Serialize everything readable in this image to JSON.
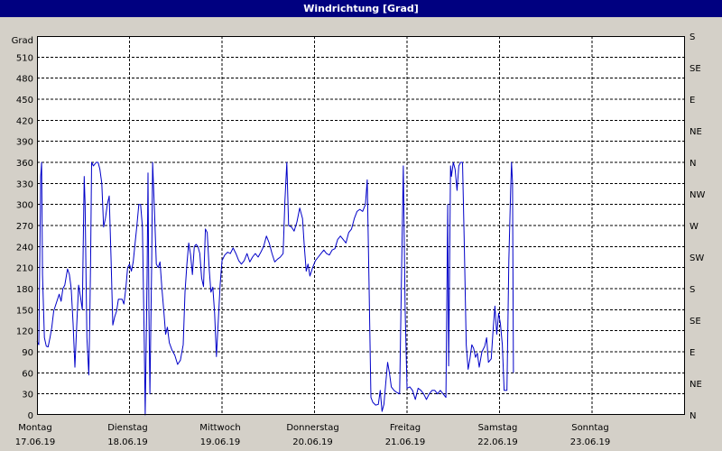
{
  "window": {
    "title": "Windrichtung [Grad]"
  },
  "chart_data": {
    "type": "line",
    "title": "Windrichtung [Grad]",
    "ylabel": "Grad",
    "ylim": [
      0,
      540
    ],
    "y_ticks": [
      0,
      30,
      60,
      90,
      120,
      150,
      180,
      210,
      240,
      270,
      300,
      330,
      360,
      390,
      420,
      450,
      480,
      510
    ],
    "right_axis_labels": [
      {
        "value": 0,
        "label": "N"
      },
      {
        "value": 45,
        "label": "NE"
      },
      {
        "value": 90,
        "label": "E"
      },
      {
        "value": 135,
        "label": "SE"
      },
      {
        "value": 180,
        "label": "S"
      },
      {
        "value": 225,
        "label": "SW"
      },
      {
        "value": 270,
        "label": "W"
      },
      {
        "value": 315,
        "label": "NW"
      },
      {
        "value": 360,
        "label": "N"
      },
      {
        "value": 405,
        "label": "NE"
      },
      {
        "value": 450,
        "label": "E"
      },
      {
        "value": 495,
        "label": "SE"
      },
      {
        "value": 540,
        "label": "S"
      }
    ],
    "x_range_days": [
      0,
      7
    ],
    "x_ticks": [
      {
        "day": 0,
        "weekday": "Montag",
        "date": "17.06.19"
      },
      {
        "day": 1,
        "weekday": "Dienstag",
        "date": "18.06.19"
      },
      {
        "day": 2,
        "weekday": "Mittwoch",
        "date": "19.06.19"
      },
      {
        "day": 3,
        "weekday": "Donnerstag",
        "date": "20.06.19"
      },
      {
        "day": 4,
        "weekday": "Freitag",
        "date": "21.06.19"
      },
      {
        "day": 5,
        "weekday": "Samstag",
        "date": "22.06.19"
      },
      {
        "day": 6,
        "weekday": "Sonntag",
        "date": "23.06.19"
      }
    ],
    "grid": true,
    "series": [
      {
        "color": "#0000c8",
        "points": [
          [
            0.0,
            105
          ],
          [
            0.02,
            100
          ],
          [
            0.04,
            340
          ],
          [
            0.05,
            360
          ],
          [
            0.06,
            200
          ],
          [
            0.08,
            110
          ],
          [
            0.1,
            98
          ],
          [
            0.12,
            97
          ],
          [
            0.14,
            110
          ],
          [
            0.16,
            125
          ],
          [
            0.18,
            148
          ],
          [
            0.21,
            160
          ],
          [
            0.24,
            172
          ],
          [
            0.26,
            162
          ],
          [
            0.28,
            180
          ],
          [
            0.3,
            185
          ],
          [
            0.33,
            208
          ],
          [
            0.35,
            200
          ],
          [
            0.37,
            180
          ],
          [
            0.39,
            130
          ],
          [
            0.41,
            68
          ],
          [
            0.43,
            130
          ],
          [
            0.45,
            185
          ],
          [
            0.47,
            168
          ],
          [
            0.49,
            150
          ],
          [
            0.51,
            340
          ],
          [
            0.52,
            300
          ],
          [
            0.53,
            200
          ],
          [
            0.54,
            110
          ],
          [
            0.56,
            57
          ],
          [
            0.57,
            130
          ],
          [
            0.58,
            220
          ],
          [
            0.59,
            360
          ],
          [
            0.61,
            355
          ],
          [
            0.64,
            360
          ],
          [
            0.66,
            360
          ],
          [
            0.68,
            350
          ],
          [
            0.7,
            330
          ],
          [
            0.72,
            268
          ],
          [
            0.74,
            280
          ],
          [
            0.76,
            300
          ],
          [
            0.78,
            312
          ],
          [
            0.8,
            225
          ],
          [
            0.82,
            128
          ],
          [
            0.84,
            140
          ],
          [
            0.86,
            148
          ],
          [
            0.88,
            165
          ],
          [
            0.9,
            165
          ],
          [
            0.92,
            165
          ],
          [
            0.94,
            158
          ],
          [
            0.96,
            180
          ],
          [
            0.98,
            210
          ],
          [
            1.0,
            215
          ],
          [
            1.02,
            205
          ],
          [
            1.04,
            218
          ],
          [
            1.06,
            245
          ],
          [
            1.08,
            270
          ],
          [
            1.1,
            300
          ],
          [
            1.12,
            300
          ],
          [
            1.14,
            268
          ],
          [
            1.16,
            100
          ],
          [
            1.17,
            0
          ],
          [
            1.19,
            200
          ],
          [
            1.2,
            345
          ],
          [
            1.21,
            150
          ],
          [
            1.22,
            30
          ],
          [
            1.24,
            220
          ],
          [
            1.25,
            360
          ],
          [
            1.27,
            290
          ],
          [
            1.29,
            215
          ],
          [
            1.31,
            210
          ],
          [
            1.33,
            218
          ],
          [
            1.35,
            180
          ],
          [
            1.37,
            150
          ],
          [
            1.39,
            115
          ],
          [
            1.41,
            125
          ],
          [
            1.43,
            103
          ],
          [
            1.46,
            92
          ],
          [
            1.49,
            85
          ],
          [
            1.52,
            72
          ],
          [
            1.55,
            78
          ],
          [
            1.58,
            100
          ],
          [
            1.6,
            175
          ],
          [
            1.62,
            215
          ],
          [
            1.64,
            245
          ],
          [
            1.66,
            228
          ],
          [
            1.68,
            200
          ],
          [
            1.7,
            240
          ],
          [
            1.72,
            243
          ],
          [
            1.74,
            240
          ],
          [
            1.76,
            230
          ],
          [
            1.78,
            195
          ],
          [
            1.8,
            183
          ],
          [
            1.82,
            265
          ],
          [
            1.84,
            260
          ],
          [
            1.86,
            210
          ],
          [
            1.88,
            175
          ],
          [
            1.9,
            182
          ],
          [
            1.92,
            145
          ],
          [
            1.94,
            83
          ],
          [
            1.96,
            135
          ],
          [
            1.98,
            185
          ],
          [
            2.0,
            220
          ],
          [
            2.03,
            228
          ],
          [
            2.06,
            232
          ],
          [
            2.09,
            230
          ],
          [
            2.12,
            238
          ],
          [
            2.15,
            230
          ],
          [
            2.18,
            220
          ],
          [
            2.21,
            215
          ],
          [
            2.24,
            220
          ],
          [
            2.27,
            230
          ],
          [
            2.3,
            218
          ],
          [
            2.33,
            225
          ],
          [
            2.36,
            230
          ],
          [
            2.39,
            225
          ],
          [
            2.42,
            232
          ],
          [
            2.45,
            240
          ],
          [
            2.48,
            255
          ],
          [
            2.51,
            245
          ],
          [
            2.54,
            230
          ],
          [
            2.57,
            218
          ],
          [
            2.6,
            222
          ],
          [
            2.63,
            225
          ],
          [
            2.66,
            230
          ],
          [
            2.68,
            305
          ],
          [
            2.7,
            360
          ],
          [
            2.72,
            270
          ],
          [
            2.75,
            268
          ],
          [
            2.78,
            262
          ],
          [
            2.81,
            275
          ],
          [
            2.84,
            295
          ],
          [
            2.87,
            280
          ],
          [
            2.89,
            240
          ],
          [
            2.91,
            205
          ],
          [
            2.93,
            215
          ],
          [
            2.95,
            198
          ],
          [
            2.98,
            210
          ],
          [
            3.01,
            220
          ],
          [
            3.04,
            225
          ],
          [
            3.07,
            230
          ],
          [
            3.1,
            235
          ],
          [
            3.13,
            230
          ],
          [
            3.16,
            228
          ],
          [
            3.19,
            235
          ],
          [
            3.22,
            237
          ],
          [
            3.25,
            250
          ],
          [
            3.28,
            255
          ],
          [
            3.31,
            250
          ],
          [
            3.34,
            245
          ],
          [
            3.37,
            260
          ],
          [
            3.4,
            265
          ],
          [
            3.43,
            280
          ],
          [
            3.46,
            290
          ],
          [
            3.49,
            293
          ],
          [
            3.52,
            290
          ],
          [
            3.55,
            300
          ],
          [
            3.57,
            335
          ],
          [
            3.59,
            180
          ],
          [
            3.61,
            25
          ],
          [
            3.63,
            18
          ],
          [
            3.66,
            14
          ],
          [
            3.69,
            15
          ],
          [
            3.71,
            35
          ],
          [
            3.73,
            5
          ],
          [
            3.75,
            15
          ],
          [
            3.77,
            45
          ],
          [
            3.79,
            75
          ],
          [
            3.81,
            60
          ],
          [
            3.83,
            40
          ],
          [
            3.86,
            35
          ],
          [
            3.89,
            32
          ],
          [
            3.92,
            30
          ],
          [
            3.94,
            200
          ],
          [
            3.96,
            355
          ],
          [
            3.98,
            150
          ],
          [
            4.0,
            38
          ],
          [
            4.03,
            40
          ],
          [
            4.06,
            35
          ],
          [
            4.09,
            22
          ],
          [
            4.12,
            38
          ],
          [
            4.15,
            35
          ],
          [
            4.18,
            30
          ],
          [
            4.21,
            22
          ],
          [
            4.24,
            30
          ],
          [
            4.27,
            35
          ],
          [
            4.3,
            35
          ],
          [
            4.33,
            30
          ],
          [
            4.36,
            35
          ],
          [
            4.39,
            30
          ],
          [
            4.42,
            25
          ],
          [
            4.44,
            300
          ],
          [
            4.45,
            70
          ],
          [
            4.46,
            200
          ],
          [
            4.47,
            355
          ],
          [
            4.48,
            340
          ],
          [
            4.5,
            360
          ],
          [
            4.52,
            350
          ],
          [
            4.54,
            320
          ],
          [
            4.56,
            355
          ],
          [
            4.58,
            360
          ],
          [
            4.6,
            360
          ],
          [
            4.62,
            240
          ],
          [
            4.64,
            100
          ],
          [
            4.66,
            65
          ],
          [
            4.68,
            80
          ],
          [
            4.7,
            100
          ],
          [
            4.72,
            95
          ],
          [
            4.74,
            82
          ],
          [
            4.76,
            88
          ],
          [
            4.78,
            68
          ],
          [
            4.81,
            90
          ],
          [
            4.84,
            98
          ],
          [
            4.86,
            110
          ],
          [
            4.88,
            75
          ],
          [
            4.91,
            80
          ],
          [
            4.93,
            120
          ],
          [
            4.95,
            155
          ],
          [
            4.97,
            115
          ],
          [
            4.99,
            145
          ],
          [
            5.01,
            130
          ],
          [
            5.03,
            100
          ],
          [
            5.05,
            35
          ],
          [
            5.08,
            35
          ],
          [
            5.1,
            220
          ],
          [
            5.12,
            320
          ],
          [
            5.13,
            360
          ],
          [
            5.14,
            330
          ],
          [
            5.15,
            60
          ]
        ]
      }
    ]
  }
}
